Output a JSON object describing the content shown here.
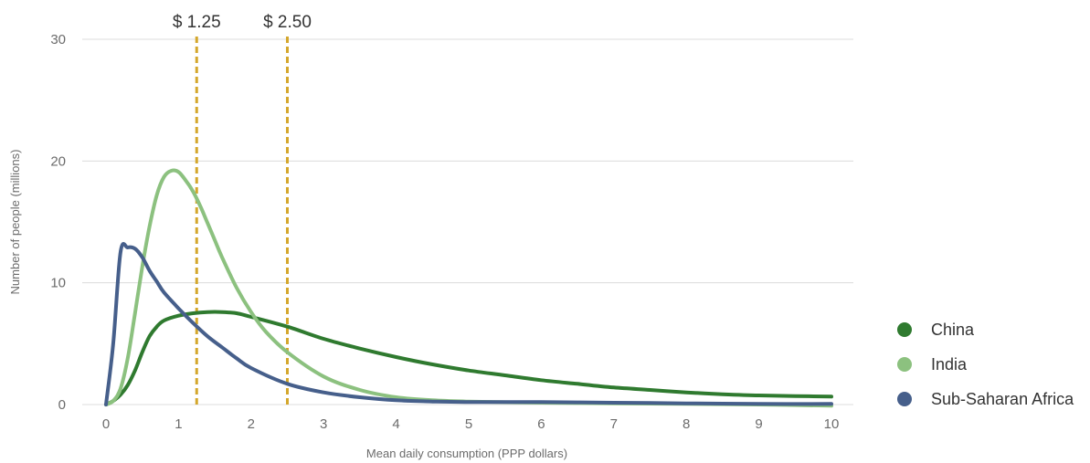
{
  "chart_data": {
    "type": "line",
    "title": "",
    "xlabel": "Mean daily consumption (PPP dollars)",
    "ylabel": "Number of people (millions)",
    "xlim": [
      0,
      10
    ],
    "ylim": [
      0,
      30
    ],
    "x_ticks": [
      0,
      1,
      2,
      3,
      4,
      5,
      6,
      7,
      8,
      9,
      10
    ],
    "y_ticks": [
      0,
      10,
      20,
      30
    ],
    "grid": true,
    "legend_position": "right",
    "reference_lines": [
      {
        "x": 1.25,
        "label": "$ 1.25",
        "color": "#d4a72c"
      },
      {
        "x": 2.5,
        "label": "$ 2.50",
        "color": "#d4a72c"
      }
    ],
    "series": [
      {
        "name": "China",
        "color": "#2f7a2f",
        "points": [
          [
            0,
            0
          ],
          [
            0.1,
            0.3
          ],
          [
            0.2,
            0.8
          ],
          [
            0.3,
            1.6
          ],
          [
            0.4,
            2.8
          ],
          [
            0.5,
            4.3
          ],
          [
            0.6,
            5.6
          ],
          [
            0.7,
            6.4
          ],
          [
            0.8,
            6.9
          ],
          [
            1.0,
            7.3
          ],
          [
            1.2,
            7.5
          ],
          [
            1.4,
            7.6
          ],
          [
            1.6,
            7.6
          ],
          [
            1.8,
            7.5
          ],
          [
            2.0,
            7.2
          ],
          [
            2.5,
            6.4
          ],
          [
            3.0,
            5.4
          ],
          [
            3.5,
            4.6
          ],
          [
            4.0,
            3.9
          ],
          [
            4.5,
            3.3
          ],
          [
            5.0,
            2.8
          ],
          [
            5.5,
            2.4
          ],
          [
            6.0,
            2.0
          ],
          [
            6.5,
            1.7
          ],
          [
            7.0,
            1.4
          ],
          [
            7.5,
            1.2
          ],
          [
            8.0,
            1.0
          ],
          [
            8.5,
            0.85
          ],
          [
            9.0,
            0.75
          ],
          [
            9.5,
            0.7
          ],
          [
            10,
            0.65
          ]
        ]
      },
      {
        "name": "India",
        "color": "#8cc17f",
        "points": [
          [
            0,
            0
          ],
          [
            0.1,
            0.3
          ],
          [
            0.2,
            1.3
          ],
          [
            0.3,
            3.8
          ],
          [
            0.4,
            7.5
          ],
          [
            0.5,
            11.3
          ],
          [
            0.6,
            14.6
          ],
          [
            0.7,
            17.2
          ],
          [
            0.8,
            18.7
          ],
          [
            0.9,
            19.2
          ],
          [
            1.0,
            19.1
          ],
          [
            1.1,
            18.4
          ],
          [
            1.2,
            17.5
          ],
          [
            1.3,
            16.3
          ],
          [
            1.4,
            14.9
          ],
          [
            1.5,
            13.5
          ],
          [
            1.6,
            12.1
          ],
          [
            1.8,
            9.6
          ],
          [
            2.0,
            7.6
          ],
          [
            2.2,
            6.0
          ],
          [
            2.5,
            4.3
          ],
          [
            3.0,
            2.3
          ],
          [
            3.5,
            1.2
          ],
          [
            4.0,
            0.6
          ],
          [
            4.5,
            0.35
          ],
          [
            5.0,
            0.25
          ],
          [
            6.0,
            0.15
          ],
          [
            7.0,
            0.1
          ],
          [
            8.0,
            0.05
          ],
          [
            9.0,
            0.0
          ],
          [
            10,
            -0.1
          ]
        ]
      },
      {
        "name": "Sub-Saharan Africa",
        "color": "#465f8b",
        "points": [
          [
            0,
            0
          ],
          [
            0.1,
            5.0
          ],
          [
            0.2,
            12.5
          ],
          [
            0.3,
            12.9
          ],
          [
            0.4,
            12.8
          ],
          [
            0.5,
            12.1
          ],
          [
            0.6,
            11.0
          ],
          [
            0.7,
            10.1
          ],
          [
            0.8,
            9.2
          ],
          [
            1.0,
            7.9
          ],
          [
            1.2,
            6.7
          ],
          [
            1.4,
            5.6
          ],
          [
            1.6,
            4.7
          ],
          [
            1.8,
            3.8
          ],
          [
            2.0,
            3.0
          ],
          [
            2.5,
            1.7
          ],
          [
            3.0,
            1.0
          ],
          [
            3.5,
            0.6
          ],
          [
            4.0,
            0.35
          ],
          [
            4.5,
            0.25
          ],
          [
            5.0,
            0.2
          ],
          [
            6.0,
            0.2
          ],
          [
            7.0,
            0.15
          ],
          [
            8.0,
            0.1
          ],
          [
            9.0,
            0.05
          ],
          [
            10,
            0.05
          ]
        ]
      }
    ]
  }
}
